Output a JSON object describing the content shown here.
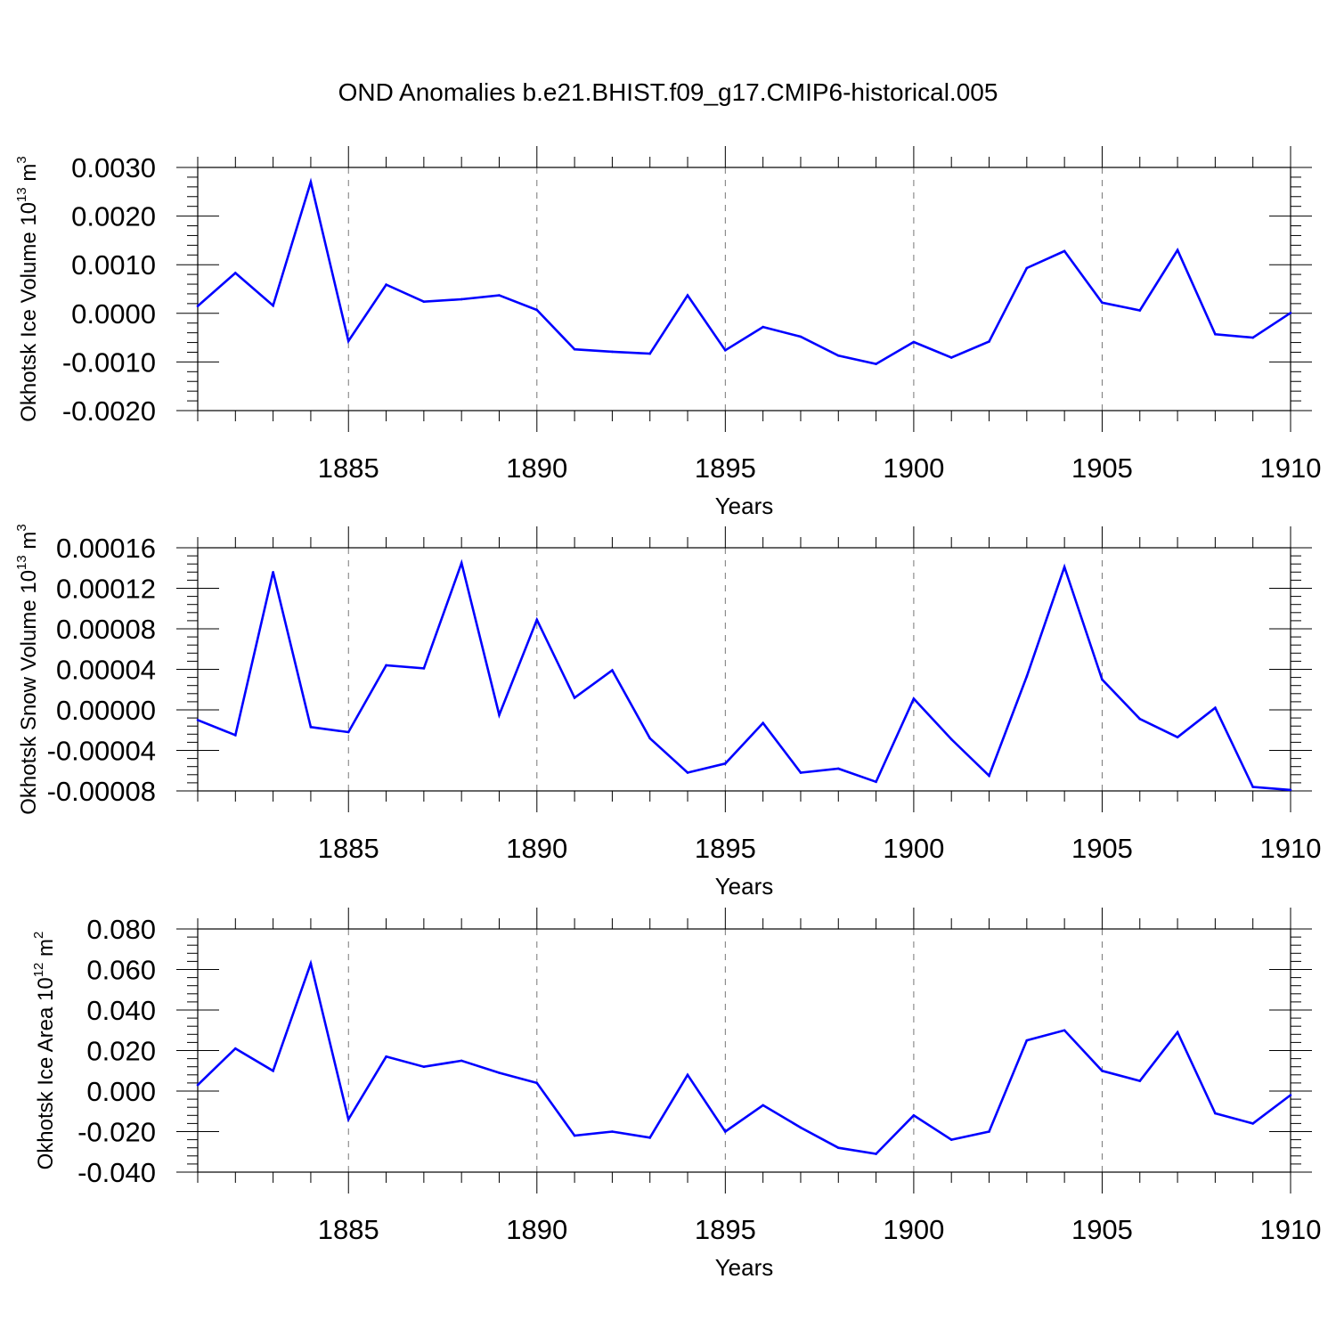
{
  "figure_title": "OND Anomalies b.e21.BHIST.f09_g17.CMIP6-historical.005",
  "chart_data": [
    {
      "type": "line",
      "id": "ice-volume",
      "title": "OND Anomalies b.e21.BHIST.f09_g17.CMIP6-historical.005",
      "xlabel": "Years",
      "ylabel": {
        "text": "Okhotsk Ice Volume 10",
        "exp": "13",
        "unit": " m",
        "unit_exp": "3"
      },
      "xlim": [
        1881,
        1910
      ],
      "ylim": [
        -0.002,
        0.003
      ],
      "xticks": [
        1885,
        1890,
        1895,
        1900,
        1905,
        1910
      ],
      "xtick_labels": [
        "1885",
        "1890",
        "1895",
        "1900",
        "1905",
        "1910"
      ],
      "yticks": [
        0.003,
        0.002,
        0.001,
        0.0,
        -0.001,
        -0.002
      ],
      "ytick_labels": [
        "0.0030",
        "0.0020",
        "0.0010",
        "0.0000",
        "-0.0010",
        "-0.0020"
      ],
      "grid": "x-dashed",
      "color": "#0000ff",
      "x": [
        1881,
        1882,
        1883,
        1884,
        1885,
        1886,
        1887,
        1888,
        1889,
        1890,
        1891,
        1892,
        1893,
        1894,
        1895,
        1896,
        1897,
        1898,
        1899,
        1900,
        1901,
        1902,
        1903,
        1904,
        1905,
        1906,
        1907,
        1908,
        1909,
        1910
      ],
      "values": [
        0.00015,
        0.00083,
        0.00016,
        0.0027,
        -0.00057,
        0.00059,
        0.00024,
        0.00029,
        0.00037,
        7e-05,
        -0.00074,
        -0.00079,
        -0.00083,
        0.00037,
        -0.00076,
        -0.00028,
        -0.00048,
        -0.00087,
        -0.00104,
        -0.00059,
        -0.00091,
        -0.00058,
        0.00093,
        0.00128,
        0.00022,
        6e-05,
        0.0013,
        -0.00043,
        -0.0005,
        1e-05
      ]
    },
    {
      "type": "line",
      "id": "snow-volume",
      "xlabel": "Years",
      "ylabel": {
        "text": "Okhotsk Snow Volume 10",
        "exp": "13",
        "unit": " m",
        "unit_exp": "3"
      },
      "xlim": [
        1881,
        1910
      ],
      "ylim": [
        -8e-05,
        0.00016
      ],
      "xticks": [
        1885,
        1890,
        1895,
        1900,
        1905,
        1910
      ],
      "xtick_labels": [
        "1885",
        "1890",
        "1895",
        "1900",
        "1905",
        "1910"
      ],
      "yticks": [
        0.00016,
        0.00012,
        8e-05,
        4e-05,
        0.0,
        -4e-05,
        -8e-05
      ],
      "ytick_labels": [
        "0.00016",
        "0.00012",
        "0.00008",
        "0.00004",
        "0.00000",
        "-0.00004",
        "-0.00008"
      ],
      "grid": "x-dashed",
      "color": "#0000ff",
      "x": [
        1881,
        1882,
        1883,
        1884,
        1885,
        1886,
        1887,
        1888,
        1889,
        1890,
        1891,
        1892,
        1893,
        1894,
        1895,
        1896,
        1897,
        1898,
        1899,
        1900,
        1901,
        1902,
        1903,
        1904,
        1905,
        1906,
        1907,
        1908,
        1909,
        1910
      ],
      "values": [
        -1e-05,
        -2.5e-05,
        0.000136,
        -1.7e-05,
        -2.2e-05,
        4.4e-05,
        4.1e-05,
        0.000145,
        -5e-06,
        8.9e-05,
        1.2e-05,
        3.9e-05,
        -2.8e-05,
        -6.2e-05,
        -5.3e-05,
        -1.3e-05,
        -6.2e-05,
        -5.8e-05,
        -7.1e-05,
        1.1e-05,
        -2.9e-05,
        -6.5e-05,
        3.3e-05,
        0.000141,
        3e-05,
        -9e-06,
        -2.7e-05,
        2e-06,
        -7.6e-05,
        -7.9e-05
      ]
    },
    {
      "type": "line",
      "id": "ice-area",
      "xlabel": "Years",
      "ylabel": {
        "text": "Okhotsk Ice Area 10",
        "exp": "12",
        "unit": " m",
        "unit_exp": "2"
      },
      "xlim": [
        1881,
        1910
      ],
      "ylim": [
        -0.04,
        0.08
      ],
      "xticks": [
        1885,
        1890,
        1895,
        1900,
        1905,
        1910
      ],
      "xtick_labels": [
        "1885",
        "1890",
        "1895",
        "1900",
        "1905",
        "1910"
      ],
      "yticks": [
        0.08,
        0.06,
        0.04,
        0.02,
        0.0,
        -0.02,
        -0.04
      ],
      "ytick_labels": [
        "0.080",
        "0.060",
        "0.040",
        "0.020",
        "0.000",
        "-0.020",
        "-0.040"
      ],
      "grid": "x-dashed",
      "color": "#0000ff",
      "x": [
        1881,
        1882,
        1883,
        1884,
        1885,
        1886,
        1887,
        1888,
        1889,
        1890,
        1891,
        1892,
        1893,
        1894,
        1895,
        1896,
        1897,
        1898,
        1899,
        1900,
        1901,
        1902,
        1903,
        1904,
        1905,
        1906,
        1907,
        1908,
        1909,
        1910
      ],
      "values": [
        0.003,
        0.021,
        0.01,
        0.063,
        -0.014,
        0.017,
        0.012,
        0.015,
        0.009,
        0.004,
        -0.022,
        -0.02,
        -0.023,
        0.008,
        -0.02,
        -0.007,
        -0.018,
        -0.028,
        -0.031,
        -0.012,
        -0.024,
        -0.02,
        0.025,
        0.03,
        0.01,
        0.005,
        0.029,
        -0.011,
        -0.016,
        -0.002
      ]
    }
  ]
}
